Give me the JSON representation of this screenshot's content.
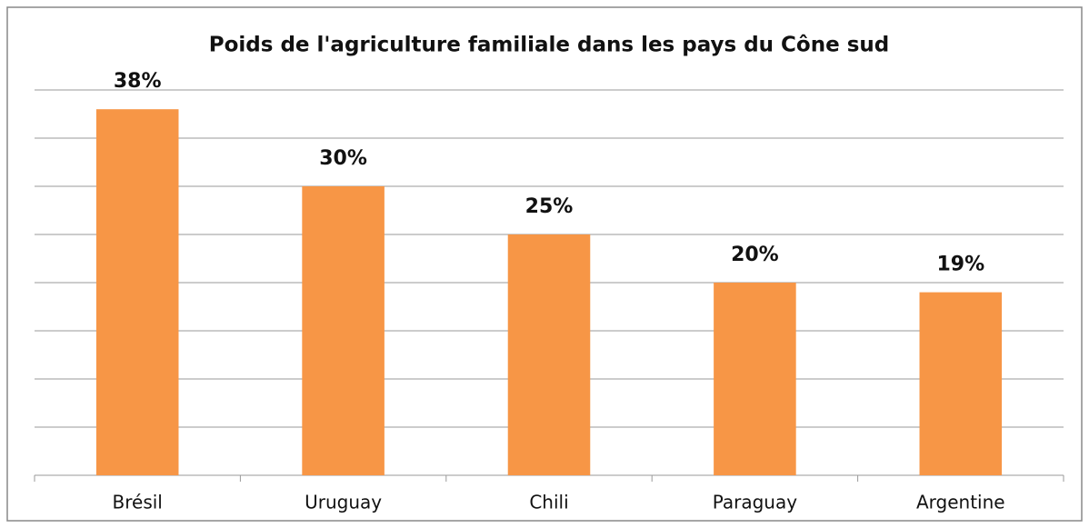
{
  "chart_data": {
    "type": "bar",
    "title": "Poids de l'agriculture familiale dans les pays du Cône sud",
    "categories": [
      "Brésil",
      "Uruguay",
      "Chili",
      "Paraguay",
      "Argentine"
    ],
    "values": [
      38,
      30,
      25,
      20,
      19
    ],
    "value_labels": [
      "38%",
      "30%",
      "25%",
      "20%",
      "19%"
    ],
    "color": "#f79646",
    "ylim": [
      0,
      40
    ],
    "yticks": [
      0,
      5,
      10,
      15,
      20,
      25,
      30,
      35,
      40
    ],
    "grid": true
  }
}
